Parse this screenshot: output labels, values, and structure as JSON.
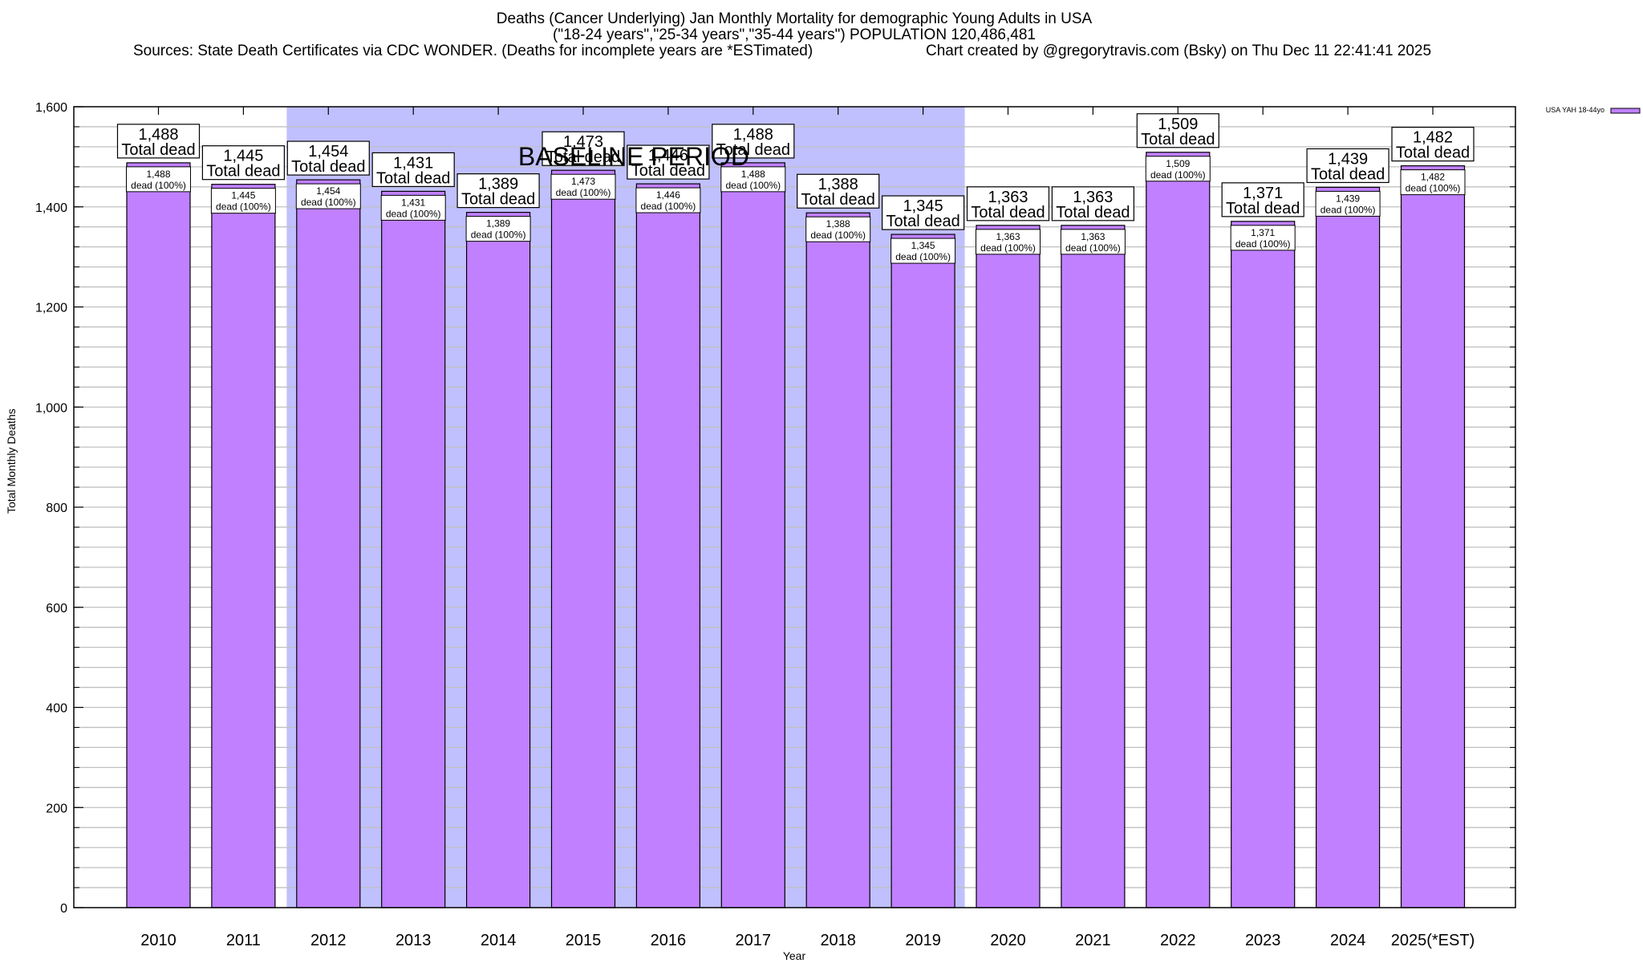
{
  "chart_data": {
    "type": "bar",
    "title": "Deaths (Cancer Underlying) Jan Monthly Mortality for demographic Young Adults in USA",
    "subtitle": "(\"18-24 years\",\"25-34 years\",\"35-44 years\") POPULATION 120,486,481",
    "source_note": "Sources: State Death Certificates via CDC WONDER. (Deaths for incomplete years are *ESTimated)",
    "credit": "Chart created by @gregorytravis.com (Bsky) on Thu Dec 11 22:41:41 2025",
    "xlabel": "Year",
    "ylabel": "Total Monthly Deaths",
    "ylim": [
      0,
      1600
    ],
    "yticks": [
      0,
      200,
      400,
      600,
      800,
      1000,
      1200,
      1400,
      1600
    ],
    "ytick_labels": [
      "0",
      "200",
      "400",
      "600",
      "800",
      "1,000",
      "1,200",
      "1,400",
      "1,600"
    ],
    "minor_grid_step": 40,
    "grid": true,
    "categories": [
      "2010",
      "2011",
      "2012",
      "2013",
      "2014",
      "2015",
      "2016",
      "2017",
      "2018",
      "2019",
      "2020",
      "2021",
      "2022",
      "2023",
      "2024",
      "2025(*EST)"
    ],
    "series": [
      {
        "name": "USA YAH 18-44yo",
        "color": "#c080ff",
        "values": [
          1488,
          1445,
          1454,
          1431,
          1389,
          1473,
          1446,
          1488,
          1388,
          1345,
          1363,
          1363,
          1509,
          1371,
          1439,
          1482
        ]
      }
    ],
    "total_labels": [
      "1,488",
      "1,445",
      "1,454",
      "1,431",
      "1,389",
      "1,473",
      "1,446",
      "1,488",
      "1,388",
      "1,345",
      "1,363",
      "1,363",
      "1,509",
      "1,371",
      "1,439",
      "1,482"
    ],
    "total_suffix": "Total dead",
    "inner_suffix": "dead (100%)",
    "baseline": {
      "label": "BASELINE PERIOD",
      "from_category": "2012",
      "to_category": "2019",
      "color": "#c0c0ff"
    },
    "legend": {
      "position": "top-right",
      "entries": [
        "USA YAH 18-44yo"
      ]
    }
  }
}
